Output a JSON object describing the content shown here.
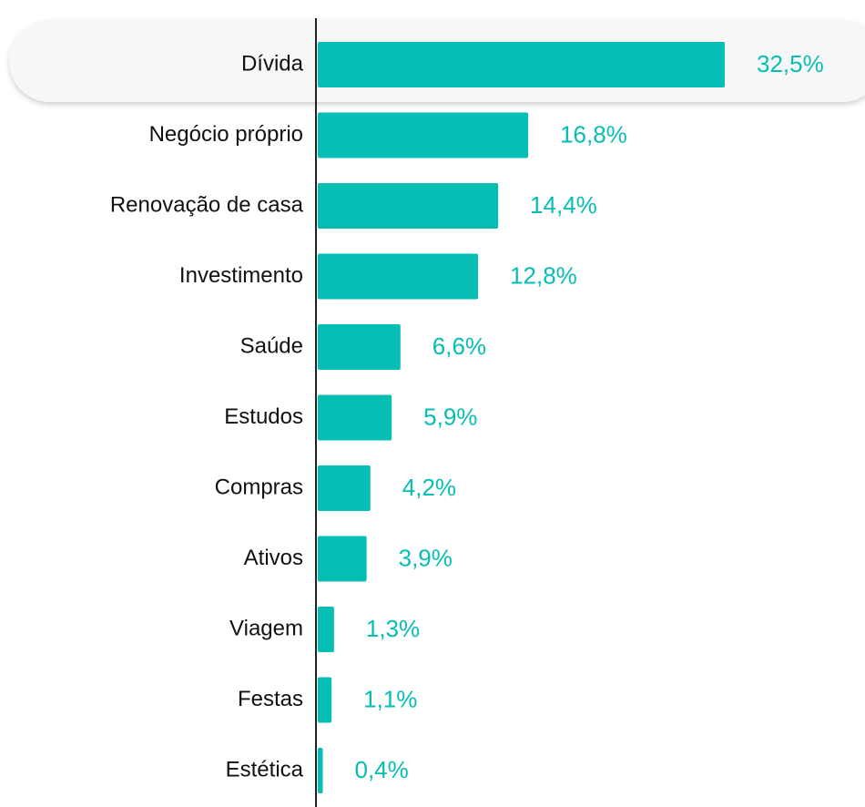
{
  "chart_data": {
    "type": "bar",
    "orientation": "horizontal",
    "categories": [
      "Dívida",
      "Negócio próprio",
      "Renovação de casa",
      "Investimento",
      "Saúde",
      "Estudos",
      "Compras",
      "Ativos",
      "Viagem",
      "Festas",
      "Estética"
    ],
    "values": [
      32.5,
      16.8,
      14.4,
      12.8,
      6.6,
      5.9,
      4.2,
      3.9,
      1.3,
      1.1,
      0.4
    ],
    "value_labels": [
      "32,5%",
      "16,8%",
      "14,4%",
      "12,8%",
      "6,6%",
      "5,9%",
      "4,2%",
      "3,9%",
      "1,3%",
      "1,1%",
      "0,4%"
    ],
    "color": "#05beb4"
  }
}
